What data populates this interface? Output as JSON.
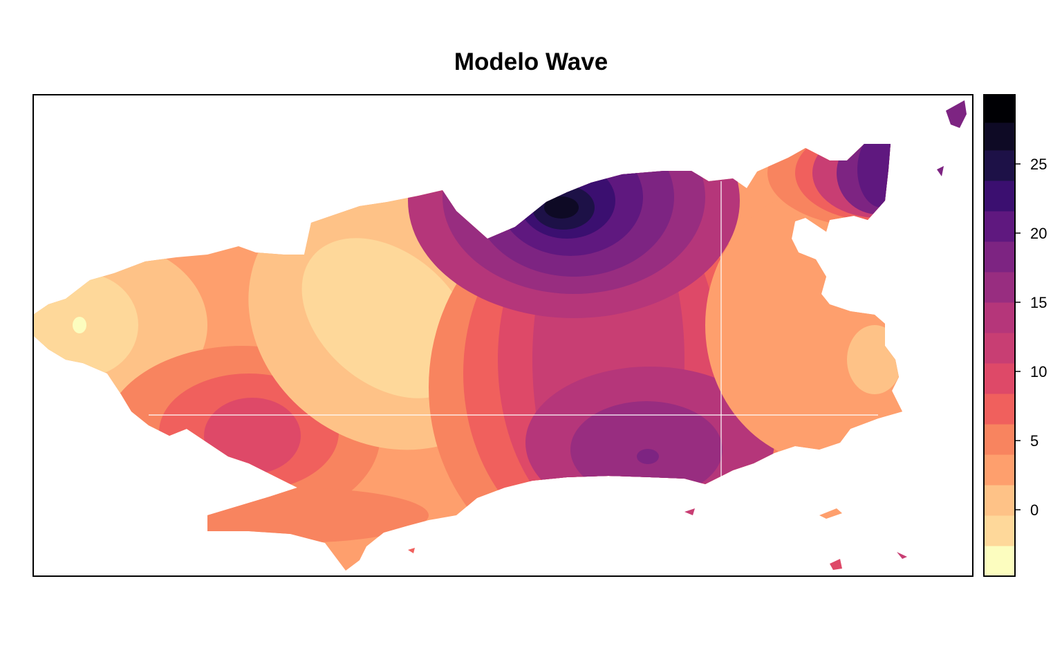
{
  "title": "Modelo Wave",
  "colorbar": {
    "ticks": [
      {
        "value": 0,
        "label": "0"
      },
      {
        "value": 5,
        "label": "5"
      },
      {
        "value": 10,
        "label": "10"
      },
      {
        "value": 15,
        "label": "15"
      },
      {
        "value": 20,
        "label": "20"
      },
      {
        "value": 25,
        "label": "25"
      }
    ],
    "range": [
      -4.8,
      30
    ],
    "bands": [
      {
        "from": -4.8,
        "to": -2.6,
        "color": "#fcfdbf"
      },
      {
        "from": -2.6,
        "to": -0.4,
        "color": "#fed89a"
      },
      {
        "from": -0.4,
        "to": 1.8,
        "color": "#fec287"
      },
      {
        "from": 1.8,
        "to": 4.0,
        "color": "#fe9f6d"
      },
      {
        "from": 4.0,
        "to": 6.2,
        "color": "#f8845f"
      },
      {
        "from": 6.2,
        "to": 8.4,
        "color": "#f0605d"
      },
      {
        "from": 8.4,
        "to": 10.6,
        "color": "#de4968"
      },
      {
        "from": 10.6,
        "to": 12.8,
        "color": "#c83e73"
      },
      {
        "from": 12.8,
        "to": 15.0,
        "color": "#b5367a"
      },
      {
        "from": 15.0,
        "to": 17.2,
        "color": "#982d80"
      },
      {
        "from": 17.2,
        "to": 19.4,
        "color": "#7d2482"
      },
      {
        "from": 19.4,
        "to": 21.6,
        "color": "#5f187f"
      },
      {
        "from": 21.6,
        "to": 23.8,
        "color": "#3b0f70"
      },
      {
        "from": 23.8,
        "to": 26.0,
        "color": "#1d1147"
      },
      {
        "from": 26.0,
        "to": 28.0,
        "color": "#0e0a25"
      },
      {
        "from": 28.0,
        "to": 30.0,
        "color": "#000004"
      }
    ]
  }
}
